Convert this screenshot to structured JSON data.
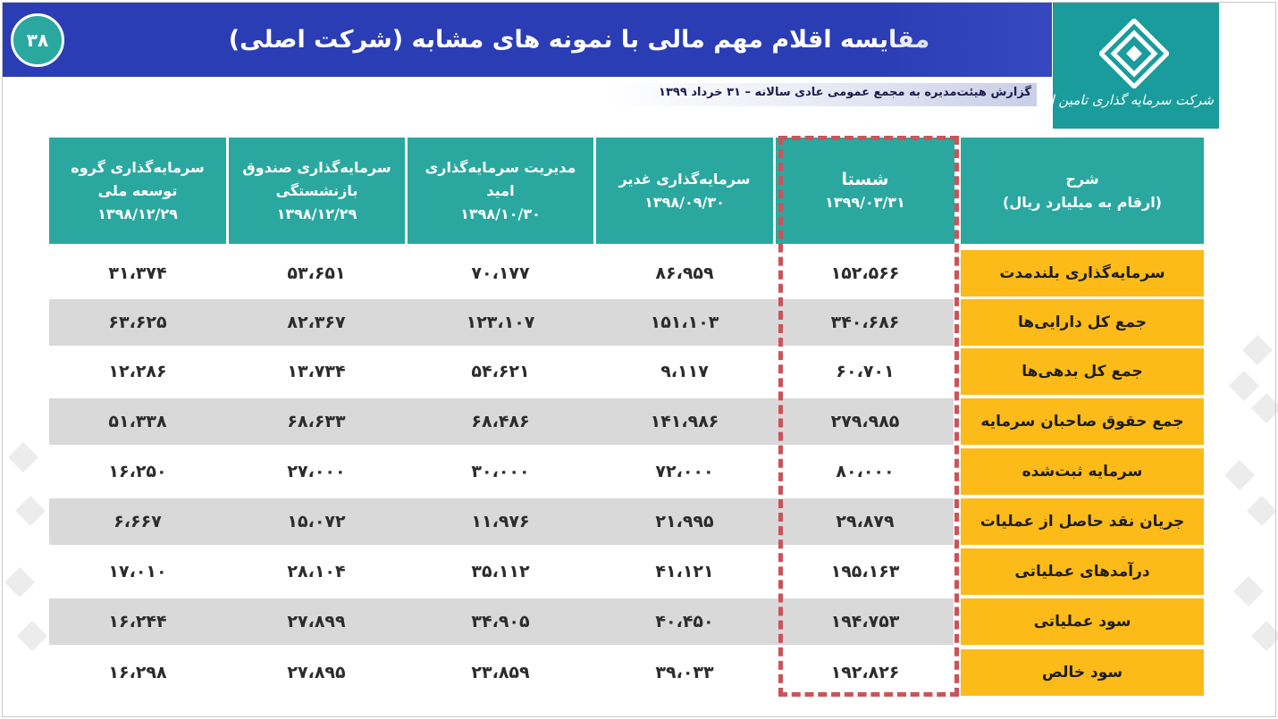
{
  "header": {
    "title": "مقایسه اقلام مهم مالی با نمونه های مشابه (شرکت اصلی)",
    "page_number": "۳۸",
    "subtitle": "گزارش هیئت‌مدیره به مجمع عمومی عادی سالانه – ۳۱ خرداد ۱۳۹۹"
  },
  "logo": {
    "text": "شرکت سرمایه گذاری تامین اجتماعی"
  },
  "colors": {
    "header_blue": "#2b3db5",
    "teal": "#2aa8a0",
    "row_label_yellow": "#fcbb19",
    "highlight_red": "#c9545a"
  },
  "table": {
    "label_header": {
      "line1": "شرح",
      "line2": "(ارقام به میلیارد ریال)"
    },
    "columns": [
      {
        "name": "شستا",
        "date": "۱۳۹۹/۰۳/۳۱"
      },
      {
        "name": "سرمایه‌گذاری غدیر",
        "date": "۱۳۹۸/۰۹/۳۰"
      },
      {
        "name": "مدیریت سرمایه‌گذاری امید",
        "date": "۱۳۹۸/۱۰/۳۰"
      },
      {
        "name": "سرمایه‌گذاری صندوق بازنشستگی",
        "date": "۱۳۹۸/۱۲/۲۹"
      },
      {
        "name": "سرمایه‌گذاری گروه توسعه ملی",
        "date": "۱۳۹۸/۱۲/۲۹"
      }
    ],
    "rows": [
      {
        "label": "سرمایه‌گذاری بلندمدت",
        "values": [
          "۱۵۲،۵۶۶",
          "۸۶،۹۵۹",
          "۷۰،۱۷۷",
          "۵۳،۶۵۱",
          "۳۱،۳۷۴"
        ]
      },
      {
        "label": "جمع کل دارایی‌ها",
        "values": [
          "۳۴۰،۶۸۶",
          "۱۵۱،۱۰۳",
          "۱۲۳،۱۰۷",
          "۸۲،۳۶۷",
          "۶۳،۶۲۵"
        ]
      },
      {
        "label": "جمع کل بدهی‌ها",
        "values": [
          "۶۰،۷۰۱",
          "۹،۱۱۷",
          "۵۴،۶۲۱",
          "۱۳،۷۳۴",
          "۱۲،۲۸۶"
        ]
      },
      {
        "label": "جمع حقوق صاحبان سرمایه",
        "values": [
          "۲۷۹،۹۸۵",
          "۱۴۱،۹۸۶",
          "۶۸،۴۸۶",
          "۶۸،۶۳۳",
          "۵۱،۳۳۸"
        ]
      },
      {
        "label": "سرمایه ثبت‌شده",
        "values": [
          "۸۰،۰۰۰",
          "۷۲،۰۰۰",
          "۳۰،۰۰۰",
          "۲۷،۰۰۰",
          "۱۶،۲۵۰"
        ]
      },
      {
        "label": "جریان نقد حاصل از عملیات",
        "values": [
          "۲۹،۸۷۹",
          "۲۱،۹۹۵",
          "۱۱،۹۷۶",
          "۱۵،۰۷۲",
          "۶،۶۶۷"
        ]
      },
      {
        "label": "درآمدهای عملیاتی",
        "values": [
          "۱۹۵،۱۶۳",
          "۴۱،۱۲۱",
          "۳۵،۱۱۲",
          "۲۸،۱۰۴",
          "۱۷،۰۱۰"
        ]
      },
      {
        "label": "سود عملیاتی",
        "values": [
          "۱۹۴،۷۵۳",
          "۴۰،۴۵۰",
          "۳۴،۹۰۵",
          "۲۷،۸۹۹",
          "۱۶،۲۴۴"
        ]
      },
      {
        "label": "سود خالص",
        "values": [
          "۱۹۲،۸۲۶",
          "۳۹،۰۳۳",
          "۲۳،۸۵۹",
          "۲۷،۸۹۵",
          "۱۶،۲۹۸"
        ]
      }
    ]
  }
}
